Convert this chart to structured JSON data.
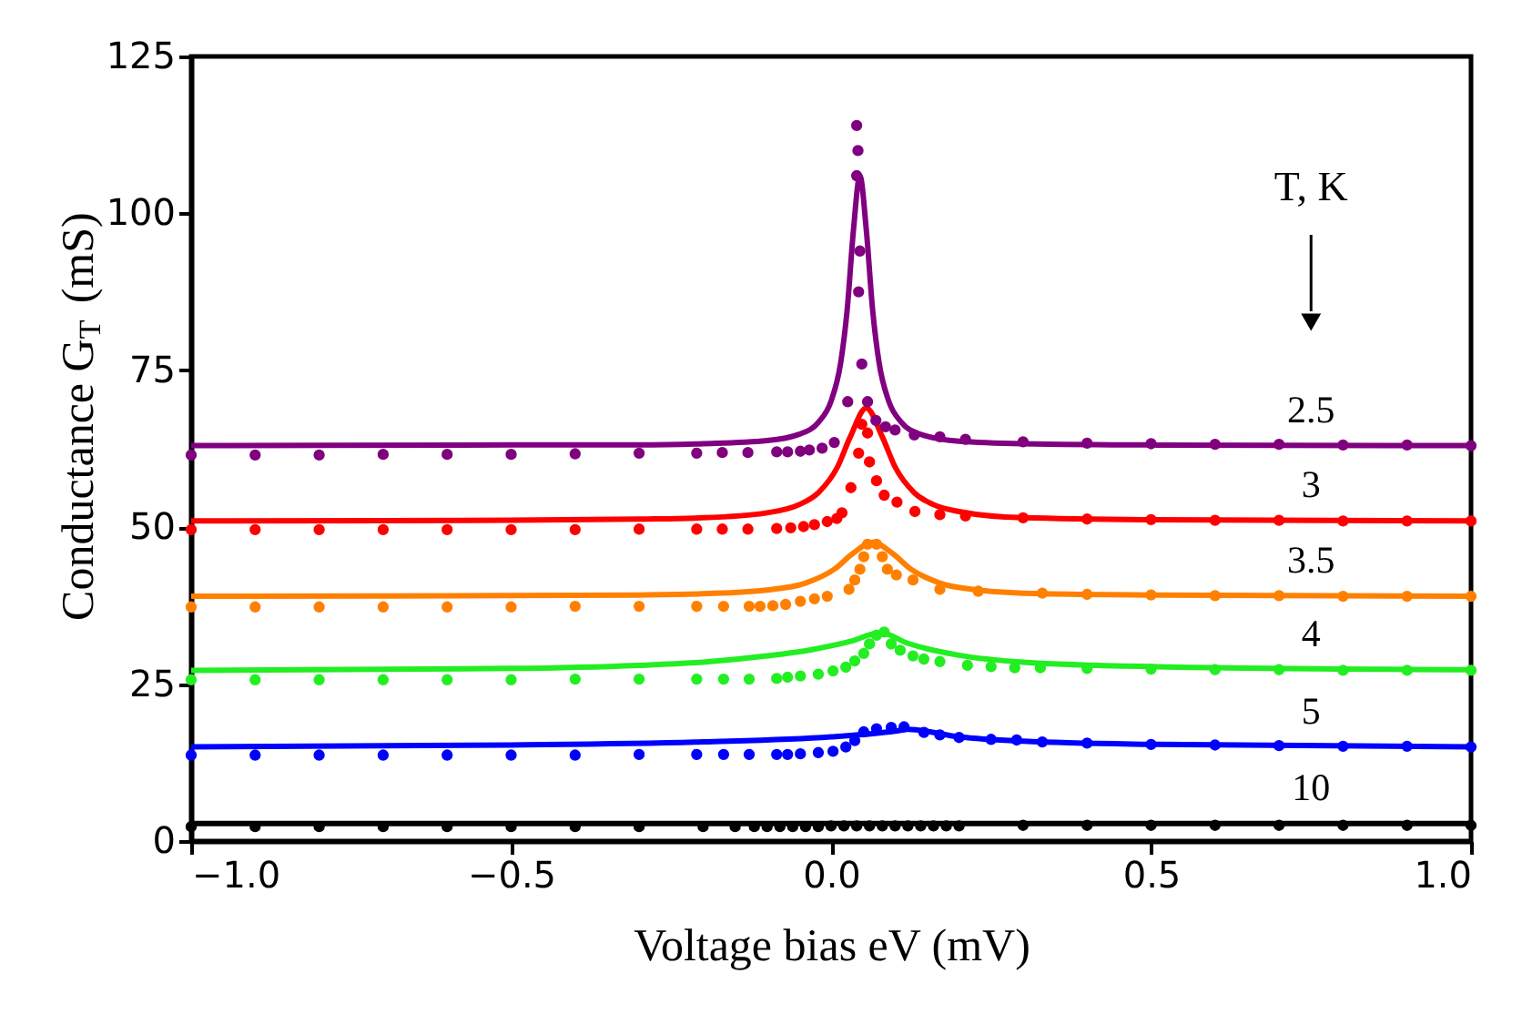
{
  "chart_data": {
    "type": "line",
    "xlabel": "Voltage bias eV (mV)",
    "ylabel": "Conductance  G$_{T}$ (mS)",
    "legend_title": "T, K",
    "xlim": [
      -1,
      1
    ],
    "ylim": [
      0,
      125
    ],
    "xticks": [
      {
        "value": -1,
        "label": "−1.0"
      },
      {
        "value": -0.5,
        "label": "−0.5"
      },
      {
        "value": 0,
        "label": "0.0"
      },
      0.5,
      {
        "value": 1,
        "label": "1.0"
      }
    ],
    "yticks": [
      0,
      25,
      50,
      75,
      100,
      125
    ],
    "grid": false,
    "series": [
      {
        "type": "scatter",
        "marker": "circle",
        "color": "#800080",
        "x": [
          -1.0,
          -0.9,
          -0.8,
          -0.7,
          -0.6,
          -0.5,
          -0.4,
          -0.3,
          -0.21,
          -0.17,
          -0.13,
          -0.085,
          -0.068,
          -0.048,
          -0.034,
          -0.014,
          0.005,
          0.026,
          0.04,
          0.042,
          0.04,
          0.045,
          0.043,
          0.048,
          0.057,
          0.07,
          0.085,
          0.1,
          0.13,
          0.17,
          0.21,
          0.3,
          0.4,
          0.5,
          0.6,
          0.7,
          0.8,
          0.9,
          1.0
        ],
        "values": [
          61.5,
          61.5,
          61.5,
          61.6,
          61.6,
          61.6,
          61.7,
          61.8,
          61.8,
          61.9,
          61.9,
          62.0,
          62.0,
          62.1,
          62.3,
          62.6,
          63.5,
          70,
          114,
          110,
          106,
          94,
          87.5,
          76,
          70,
          67,
          66,
          65.5,
          64.7,
          64.4,
          64.0,
          63.6,
          63.4,
          63.3,
          63.2,
          63.2,
          63.1,
          63.1,
          63.0
        ]
      },
      {
        "type": "scatter",
        "marker": "circle",
        "color": "#ff0000",
        "x": [
          -1.0,
          -0.9,
          -0.8,
          -0.7,
          -0.6,
          -0.5,
          -0.4,
          -0.3,
          -0.21,
          -0.17,
          -0.13,
          -0.085,
          -0.063,
          -0.043,
          -0.026,
          -0.006,
          0.009,
          0.017,
          0.031,
          0.043,
          0.048,
          0.057,
          0.06,
          0.071,
          0.083,
          0.103,
          0.131,
          0.17,
          0.21,
          0.3,
          0.4,
          0.5,
          0.6,
          0.7,
          0.8,
          0.9,
          1.0
        ],
        "values": [
          49.6,
          49.6,
          49.6,
          49.6,
          49.6,
          49.6,
          49.6,
          49.7,
          49.7,
          49.7,
          49.7,
          49.8,
          49.9,
          50.1,
          50.4,
          50.9,
          51.4,
          52.3,
          56.3,
          61.8,
          66.4,
          65,
          60.4,
          57.4,
          55.1,
          54,
          52.5,
          52,
          51.8,
          51.5,
          51.3,
          51.2,
          51.1,
          51.1,
          51.0,
          51.0,
          51.0
        ]
      },
      {
        "type": "scatter",
        "marker": "circle",
        "color": "#ff8000",
        "x": [
          -1.0,
          -0.9,
          -0.8,
          -0.7,
          -0.6,
          -0.5,
          -0.4,
          -0.3,
          -0.21,
          -0.168,
          -0.128,
          -0.111,
          -0.091,
          -0.071,
          -0.048,
          -0.026,
          -0.006,
          0.028,
          0.037,
          0.045,
          0.051,
          0.057,
          0.071,
          0.08,
          0.088,
          0.102,
          0.128,
          0.17,
          0.23,
          0.33,
          0.4,
          0.5,
          0.6,
          0.7,
          0.8,
          0.9,
          1.0
        ],
        "values": [
          37.3,
          37.3,
          37.3,
          37.3,
          37.3,
          37.3,
          37.4,
          37.4,
          37.4,
          37.4,
          37.4,
          37.4,
          37.5,
          37.7,
          38.2,
          38.6,
          39.0,
          40.1,
          41.6,
          43.3,
          45.3,
          47.3,
          47.3,
          45.3,
          43.3,
          42.4,
          41.6,
          40.1,
          39.8,
          39.5,
          39.3,
          39.2,
          39.1,
          39.1,
          39.0,
          39.0,
          39.0
        ]
      },
      {
        "type": "scatter",
        "marker": "circle",
        "color": "#22ee22",
        "x": [
          -1.0,
          -0.9,
          -0.8,
          -0.7,
          -0.6,
          -0.5,
          -0.4,
          -0.3,
          -0.21,
          -0.168,
          -0.128,
          -0.085,
          -0.068,
          -0.048,
          -0.02,
          0.003,
          0.023,
          0.037,
          0.051,
          0.06,
          0.071,
          0.083,
          0.094,
          0.108,
          0.128,
          0.145,
          0.17,
          0.213,
          0.25,
          0.287,
          0.327,
          0.4,
          0.5,
          0.6,
          0.7,
          0.8,
          0.9,
          1.0
        ],
        "values": [
          25.7,
          25.7,
          25.7,
          25.7,
          25.7,
          25.7,
          25.8,
          25.8,
          25.8,
          25.8,
          25.8,
          25.9,
          26.1,
          26.3,
          26.6,
          27.1,
          27.7,
          28.7,
          29.9,
          31.4,
          32.8,
          33.3,
          31.4,
          30.4,
          29.5,
          29.0,
          28.6,
          28.0,
          27.8,
          27.6,
          27.6,
          27.5,
          27.4,
          27.3,
          27.3,
          27.2,
          27.2,
          27.2
        ]
      },
      {
        "type": "scatter",
        "marker": "circle",
        "color": "#0000ff",
        "x": [
          -1.0,
          -0.9,
          -0.8,
          -0.7,
          -0.6,
          -0.5,
          -0.4,
          -0.3,
          -0.21,
          -0.168,
          -0.128,
          -0.085,
          -0.068,
          -0.048,
          -0.02,
          0.003,
          0.023,
          0.037,
          0.051,
          0.071,
          0.094,
          0.114,
          0.145,
          0.17,
          0.2,
          0.25,
          0.29,
          0.33,
          0.4,
          0.5,
          0.6,
          0.7,
          0.8,
          0.9,
          1.0
        ],
        "values": [
          13.7,
          13.7,
          13.7,
          13.7,
          13.7,
          13.7,
          13.7,
          13.8,
          13.8,
          13.8,
          13.8,
          13.8,
          13.8,
          13.9,
          14.1,
          14.3,
          15.0,
          16.0,
          17.4,
          17.9,
          18.1,
          18.2,
          17.3,
          16.9,
          16.5,
          16.2,
          16.1,
          15.8,
          15.6,
          15.4,
          15.3,
          15.2,
          15.1,
          15.1,
          15.0
        ]
      },
      {
        "type": "scatter",
        "marker": "circle",
        "color": "#000000",
        "x": [
          -1.0,
          -0.9,
          -0.8,
          -0.7,
          -0.6,
          -0.5,
          -0.4,
          -0.3,
          -0.2,
          -0.15,
          -0.12,
          -0.1,
          -0.08,
          -0.06,
          -0.04,
          -0.02,
          0,
          0.02,
          0.04,
          0.06,
          0.08,
          0.1,
          0.12,
          0.14,
          0.16,
          0.18,
          0.2,
          0.3,
          0.4,
          0.5,
          0.6,
          0.7,
          0.8,
          0.9,
          1.0
        ],
        "values": [
          2.3,
          2.3,
          2.3,
          2.3,
          2.3,
          2.3,
          2.3,
          2.3,
          2.3,
          2.3,
          2.3,
          2.3,
          2.3,
          2.3,
          2.3,
          2.3,
          2.4,
          2.4,
          2.4,
          2.4,
          2.4,
          2.4,
          2.4,
          2.4,
          2.4,
          2.4,
          2.4,
          2.5,
          2.5,
          2.5,
          2.5,
          2.5,
          2.5,
          2.5,
          2.5
        ]
      },
      {
        "name": "2.5",
        "color": "#800080",
        "x": [
          -1,
          -0.5,
          -0.3,
          -0.2,
          -0.1,
          -0.05,
          -0.02,
          0,
          0.015,
          0.025,
          0.035,
          0.045,
          0.055,
          0.065,
          0.075,
          0.09,
          0.11,
          0.14,
          0.2,
          0.3,
          0.5,
          1.0
        ],
        "values": [
          63.0,
          63.1,
          63.1,
          63.3,
          63.8,
          64.8,
          66.7,
          70.1,
          76.2,
          84.5,
          97.4,
          106,
          97.4,
          84.5,
          76.2,
          70.1,
          66.7,
          64.8,
          63.7,
          63.3,
          63.1,
          63.0
        ]
      },
      {
        "name": "3",
        "color": "#ff0000",
        "x": [
          -1,
          -0.5,
          -0.3,
          -0.2,
          -0.1,
          -0.05,
          -0.02,
          0.01,
          0.03,
          0.055,
          0.08,
          0.1,
          0.13,
          0.16,
          0.2,
          0.3,
          0.5,
          1.0
        ],
        "values": [
          51.0,
          51.1,
          51.3,
          51.5,
          52.3,
          53.6,
          55.5,
          59.6,
          64.4,
          69,
          64.4,
          59.6,
          55.5,
          53.6,
          52.5,
          51.5,
          51.2,
          51.0
        ]
      },
      {
        "name": "3.5",
        "color": "#ff8000",
        "x": [
          -1,
          -0.5,
          -0.3,
          -0.2,
          -0.1,
          -0.04,
          0.005,
          0.035,
          0.065,
          0.095,
          0.125,
          0.17,
          0.23,
          0.33,
          0.5,
          1.0
        ],
        "values": [
          39.0,
          39.1,
          39.2,
          39.4,
          40.0,
          41.1,
          43.3,
          45.9,
          47.6,
          45.9,
          43.3,
          41.1,
          40.0,
          39.4,
          39.2,
          39.0
        ]
      },
      {
        "name": "4",
        "color": "#22ee22",
        "x": [
          -1,
          -0.5,
          -0.3,
          -0.2,
          -0.1,
          -0.03,
          0.03,
          0.077,
          0.12,
          0.2,
          0.3,
          0.5,
          1.0
        ],
        "values": [
          27.2,
          27.5,
          28.0,
          28.5,
          29.5,
          30.5,
          31.8,
          33.2,
          31.5,
          29.6,
          28.5,
          27.8,
          27.3
        ]
      },
      {
        "name": "5",
        "color": "#0000ff",
        "x": [
          -1,
          -0.5,
          -0.2,
          0,
          0.1,
          0.12,
          0.2,
          0.3,
          0.5,
          1.0
        ],
        "values": [
          15.0,
          15.3,
          15.8,
          16.6,
          17.5,
          17.8,
          16.6,
          15.9,
          15.4,
          15.0
        ]
      },
      {
        "name": "10",
        "color": "#000000",
        "x": [
          -1,
          -0.5,
          0,
          0.5,
          1.0
        ],
        "values": [
          2.8,
          2.8,
          2.8,
          2.8,
          2.8
        ]
      }
    ]
  }
}
